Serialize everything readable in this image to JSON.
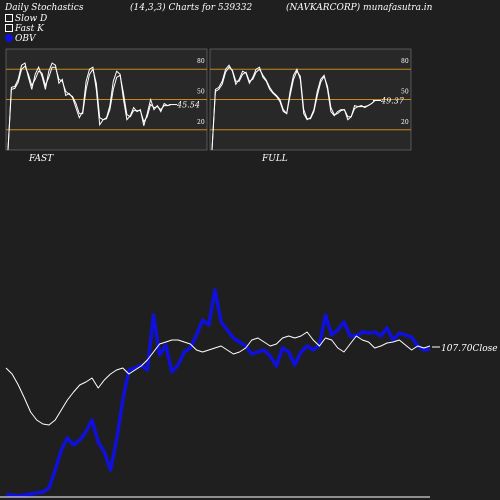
{
  "header": {
    "left": "Daily Stochastics",
    "center": "(14,3,3) Charts for 539332",
    "right": "(NAVKARCORP) munafasutra.in"
  },
  "legend": [
    {
      "label": "Slow  D",
      "color": "#ffffff",
      "kind": "square"
    },
    {
      "label": "Fast K",
      "color": "#ffffff",
      "kind": "square"
    },
    {
      "label": "OBV",
      "color": "#1010dd",
      "kind": "dot"
    }
  ],
  "panels": {
    "fast": {
      "label": "FAST",
      "value_label": "45.54"
    },
    "full": {
      "label": "FULL",
      "value_label": "49.37"
    }
  },
  "price_label": "107.70Close",
  "colors": {
    "obv": "#1010dd",
    "price": "#ffffff",
    "level_line": "#c8861c",
    "panel_bg": "#282828"
  },
  "chart_data": [
    {
      "type": "line",
      "name": "FAST",
      "ylim": [
        0,
        100
      ],
      "levels": [
        20,
        50,
        80
      ],
      "yticks": [
        "80",
        "50",
        "20"
      ],
      "series": [
        {
          "values": [
            0,
            62,
            63,
            70,
            84,
            86,
            72,
            60,
            75,
            82,
            73,
            60,
            78,
            86,
            84,
            66,
            70,
            54,
            56,
            52,
            42,
            32,
            38,
            68,
            80,
            82,
            60,
            25,
            30,
            32,
            44,
            68,
            78,
            75,
            50,
            30,
            34,
            42,
            38,
            40,
            24,
            36,
            50,
            40,
            44,
            38,
            46,
            44,
            45
          ]
        },
        {
          "values": [
            0,
            60,
            61,
            67,
            80,
            83,
            75,
            64,
            70,
            78,
            76,
            64,
            72,
            82,
            82,
            70,
            68,
            58,
            55,
            53,
            46,
            36,
            36,
            60,
            75,
            80,
            66,
            32,
            30,
            31,
            40,
            60,
            72,
            74,
            56,
            35,
            33,
            39,
            39,
            39,
            28,
            33,
            45,
            42,
            43,
            40,
            44,
            44,
            45
          ]
        }
      ]
    },
    {
      "type": "line",
      "name": "FULL",
      "ylim": [
        0,
        100
      ],
      "levels": [
        20,
        50,
        80
      ],
      "yticks": [
        "80",
        "50",
        "20"
      ],
      "series": [
        {
          "values": [
            0,
            60,
            62,
            68,
            80,
            84,
            78,
            65,
            70,
            78,
            76,
            66,
            72,
            80,
            82,
            72,
            68,
            60,
            56,
            53,
            48,
            38,
            36,
            58,
            74,
            80,
            70,
            36,
            30,
            32,
            40,
            58,
            70,
            74,
            60,
            38,
            34,
            38,
            40,
            40,
            30,
            33,
            44,
            43,
            44,
            42,
            44,
            46,
            49
          ]
        },
        {
          "values": [
            0,
            58,
            60,
            65,
            77,
            82,
            79,
            68,
            68,
            75,
            77,
            68,
            70,
            77,
            80,
            74,
            69,
            62,
            57,
            54,
            50,
            40,
            36,
            54,
            70,
            78,
            73,
            40,
            31,
            31,
            38,
            54,
            67,
            73,
            63,
            42,
            35,
            36,
            39,
            40,
            33,
            33,
            41,
            43,
            43,
            43,
            44,
            46,
            49
          ]
        }
      ]
    },
    {
      "type": "line",
      "name": "Price / OBV",
      "series": [
        {
          "name": "Close",
          "values": [
            368,
            374,
            385,
            398,
            412,
            420,
            424,
            425,
            420,
            410,
            400,
            392,
            385,
            382,
            378,
            388,
            380,
            374,
            370,
            368,
            374,
            370,
            366,
            360,
            352,
            344,
            342,
            340,
            340,
            342,
            344,
            350,
            352,
            350,
            348,
            346,
            350,
            354,
            352,
            348,
            340,
            338,
            342,
            346,
            344,
            338,
            336,
            338,
            336,
            332,
            340,
            346,
            338,
            340,
            348,
            352,
            344,
            336,
            340,
            342,
            348,
            346,
            343,
            342,
            340,
            345,
            350,
            346,
            348,
            346
          ]
        },
        {
          "name": "OBV",
          "values": [
            495,
            495,
            496,
            495,
            494,
            493,
            492,
            488,
            470,
            450,
            438,
            445,
            440,
            432,
            420,
            442,
            452,
            470,
            440,
            400,
            370,
            368,
            365,
            370,
            315,
            355,
            345,
            372,
            365,
            352,
            348,
            335,
            320,
            325,
            290,
            322,
            330,
            338,
            342,
            346,
            354,
            352,
            350,
            356,
            366,
            348,
            352,
            365,
            352,
            346,
            350,
            345,
            315,
            335,
            330,
            322,
            336,
            336,
            332,
            333,
            332,
            336,
            328,
            340,
            333,
            335,
            337,
            346,
            350,
            349
          ]
        }
      ]
    }
  ]
}
